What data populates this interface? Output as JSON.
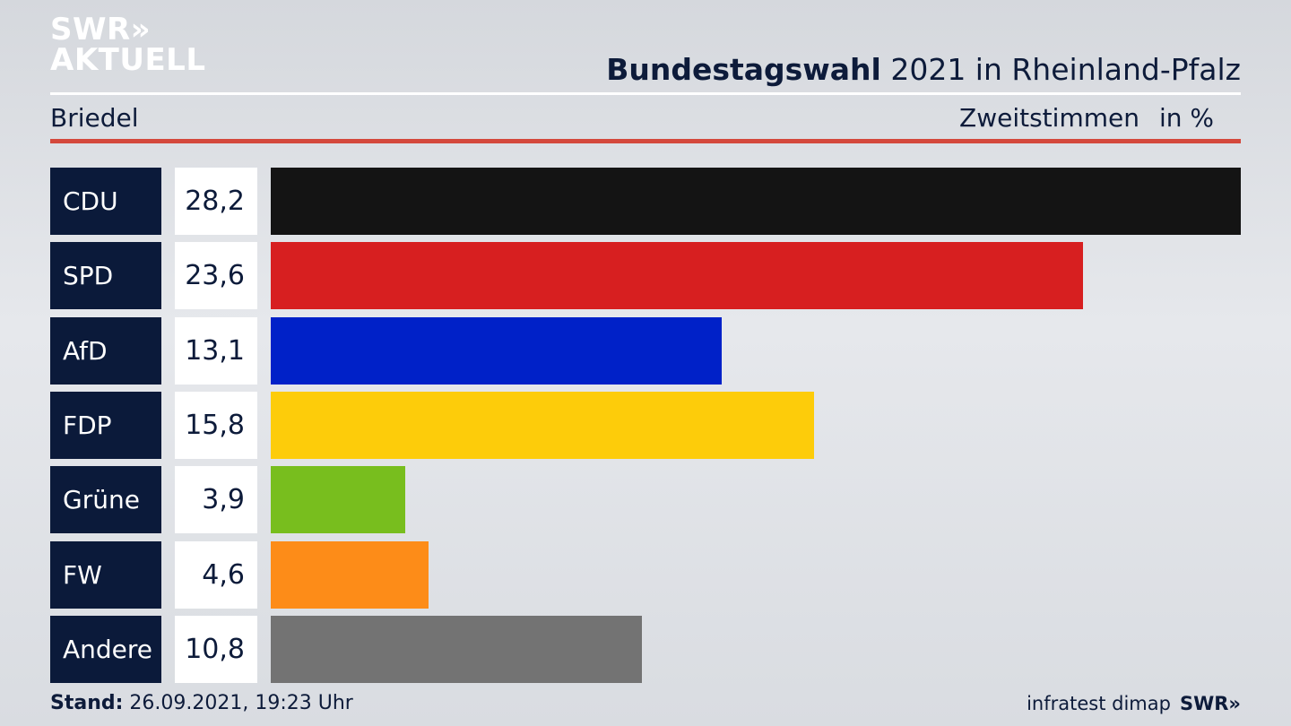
{
  "brand": {
    "line1": "SWR",
    "chevrons": "»",
    "line2": "AKTUELL"
  },
  "header": {
    "title_bold": "Bundestagswahl",
    "title_rest": " 2021 in Rheinland-Pfalz"
  },
  "subheader": {
    "location": "Briedel",
    "measure": "Zweitstimmen",
    "unit": "in %"
  },
  "chart_data": {
    "type": "bar",
    "orientation": "horizontal",
    "categories": [
      "CDU",
      "SPD",
      "AfD",
      "FDP",
      "Grüne",
      "FW",
      "Andere"
    ],
    "values": [
      28.2,
      23.6,
      13.1,
      15.8,
      3.9,
      4.6,
      10.8
    ],
    "value_labels": [
      "28,2",
      "23,6",
      "13,1",
      "15,8",
      "3,9",
      "4,6",
      "10,8"
    ],
    "colors": [
      "#141414",
      "#d71f20",
      "#0021c8",
      "#fdcc0a",
      "#78be1e",
      "#fd8c18",
      "#737373"
    ],
    "xlim": [
      0,
      28.2
    ],
    "title": "Bundestagswahl 2021 in Rheinland-Pfalz",
    "xlabel": "Zweitstimmen in %"
  },
  "footer": {
    "stand_label": "Stand:",
    "stand_value": " 26.09.2021, 19:23 Uhr",
    "source": "infratest dimap",
    "logo": "SWR»"
  }
}
